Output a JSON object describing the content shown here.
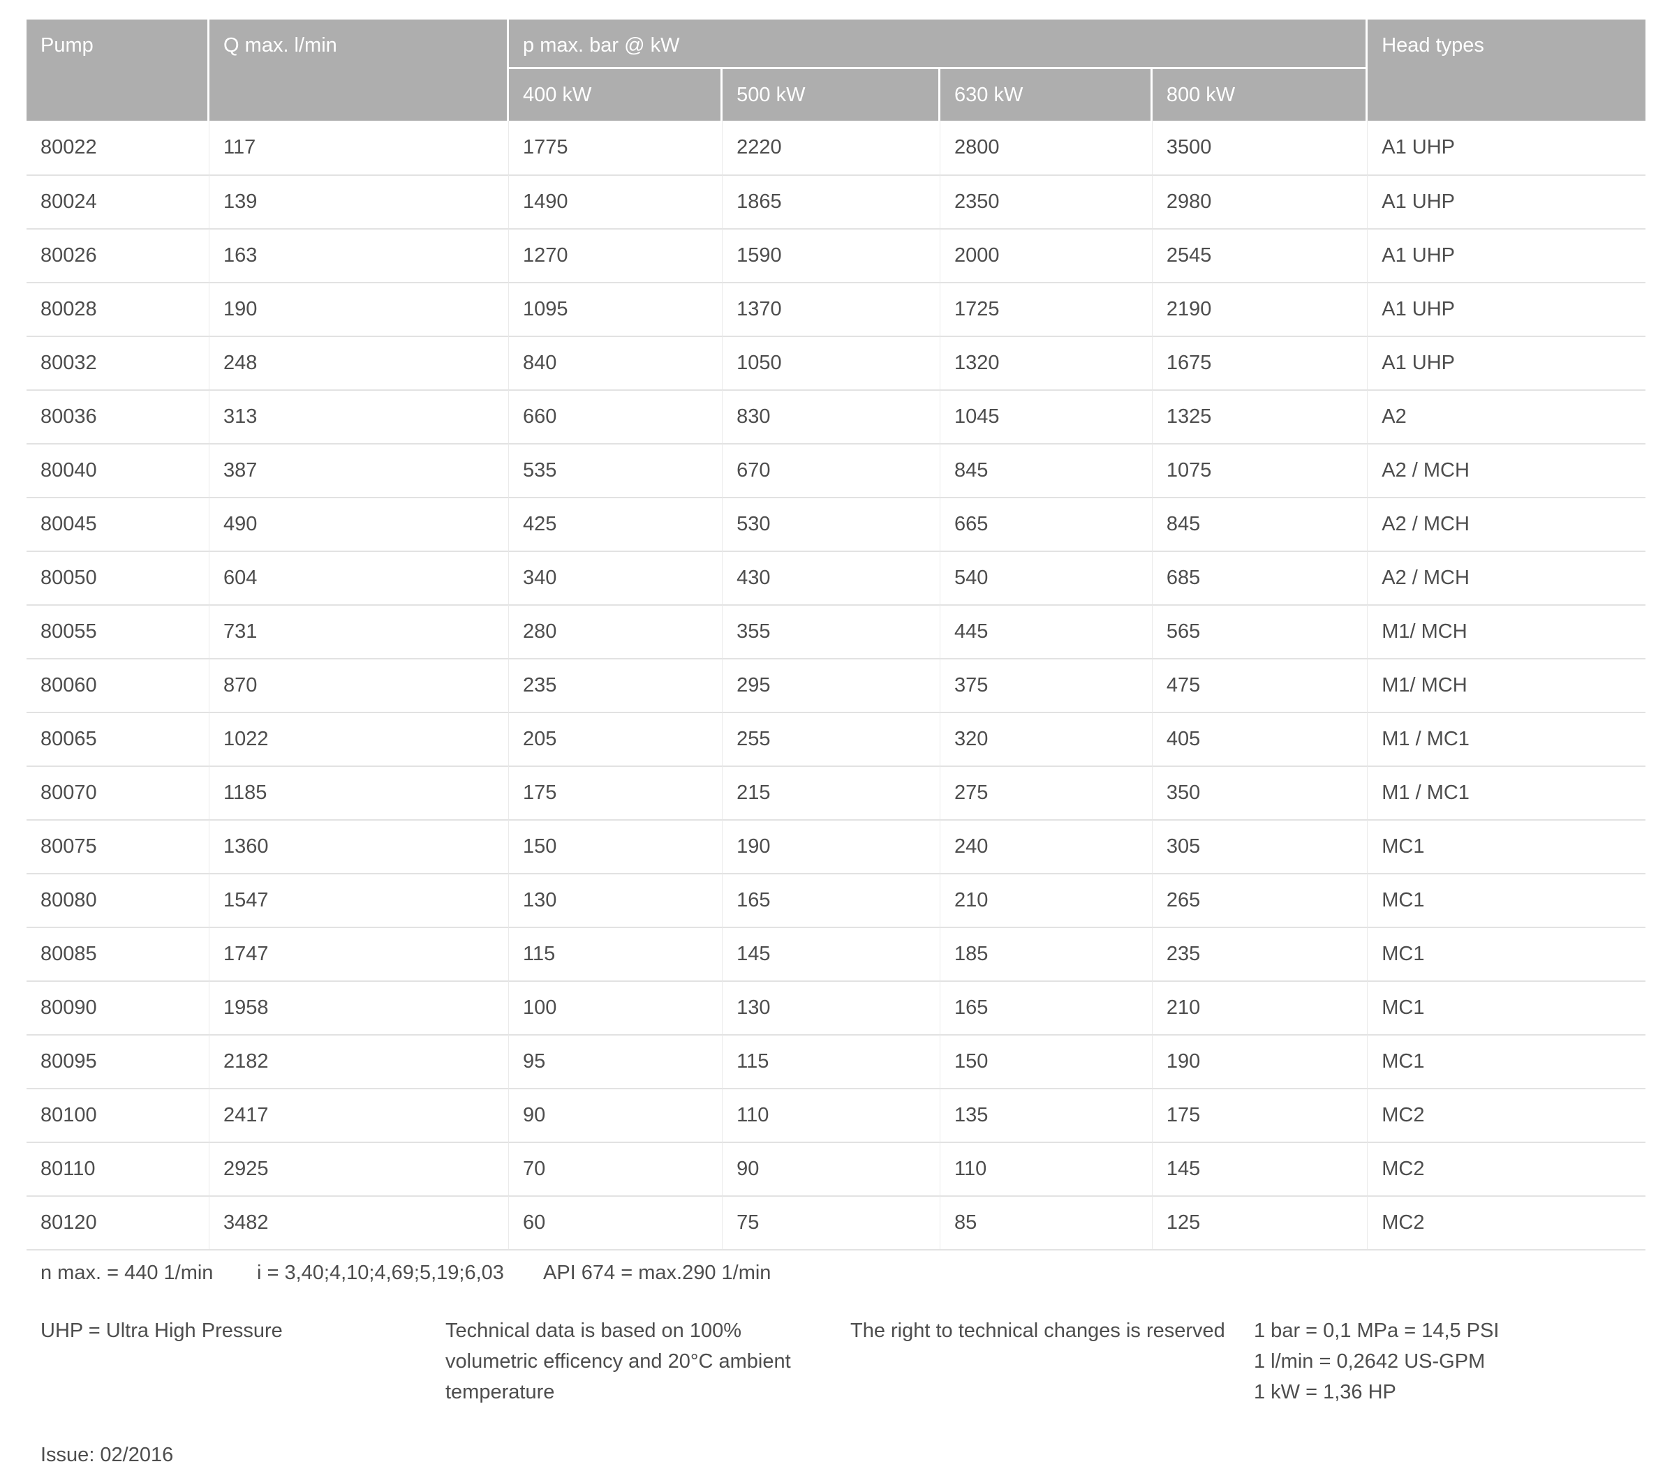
{
  "colors": {
    "header_bg": "#aeaeae",
    "header_text": "#ffffff",
    "body_text": "#4d4d4d",
    "row_divider": "#e2e2e2"
  },
  "table": {
    "header": {
      "pump": "Pump",
      "q_max": "Q max. l/min",
      "p_max_group": "p max. bar @ kW",
      "kw_columns": [
        "400 kW",
        "500 kW",
        "630 kW",
        "800 kW"
      ],
      "head_types": "Head types"
    },
    "rows": [
      {
        "pump": "80022",
        "q_max": "117",
        "p_max_bar": [
          "1775",
          "2220",
          "2800",
          "3500"
        ],
        "head_types": "A1 UHP"
      },
      {
        "pump": "80024",
        "q_max": "139",
        "p_max_bar": [
          "1490",
          "1865",
          "2350",
          "2980"
        ],
        "head_types": "A1 UHP"
      },
      {
        "pump": "80026",
        "q_max": "163",
        "p_max_bar": [
          "1270",
          "1590",
          "2000",
          "2545"
        ],
        "head_types": "A1 UHP"
      },
      {
        "pump": "80028",
        "q_max": "190",
        "p_max_bar": [
          "1095",
          "1370",
          "1725",
          "2190"
        ],
        "head_types": "A1 UHP"
      },
      {
        "pump": "80032",
        "q_max": "248",
        "p_max_bar": [
          "840",
          "1050",
          "1320",
          "1675"
        ],
        "head_types": "A1 UHP"
      },
      {
        "pump": "80036",
        "q_max": "313",
        "p_max_bar": [
          "660",
          "830",
          "1045",
          "1325"
        ],
        "head_types": "A2"
      },
      {
        "pump": "80040",
        "q_max": "387",
        "p_max_bar": [
          "535",
          "670",
          "845",
          "1075"
        ],
        "head_types": "A2 / MCH"
      },
      {
        "pump": "80045",
        "q_max": "490",
        "p_max_bar": [
          "425",
          "530",
          "665",
          "845"
        ],
        "head_types": "A2 / MCH"
      },
      {
        "pump": "80050",
        "q_max": "604",
        "p_max_bar": [
          "340",
          "430",
          "540",
          "685"
        ],
        "head_types": "A2 / MCH"
      },
      {
        "pump": "80055",
        "q_max": "731",
        "p_max_bar": [
          "280",
          "355",
          "445",
          "565"
        ],
        "head_types": "M1/ MCH"
      },
      {
        "pump": "80060",
        "q_max": "870",
        "p_max_bar": [
          "235",
          "295",
          "375",
          "475"
        ],
        "head_types": "M1/ MCH"
      },
      {
        "pump": "80065",
        "q_max": "1022",
        "p_max_bar": [
          "205",
          "255",
          "320",
          "405"
        ],
        "head_types": "M1 / MC1"
      },
      {
        "pump": "80070",
        "q_max": "1185",
        "p_max_bar": [
          "175",
          "215",
          "275",
          "350"
        ],
        "head_types": "M1 / MC1"
      },
      {
        "pump": "80075",
        "q_max": "1360",
        "p_max_bar": [
          "150",
          "190",
          "240",
          "305"
        ],
        "head_types": "MC1"
      },
      {
        "pump": "80080",
        "q_max": "1547",
        "p_max_bar": [
          "130",
          "165",
          "210",
          "265"
        ],
        "head_types": "MC1"
      },
      {
        "pump": "80085",
        "q_max": "1747",
        "p_max_bar": [
          "115",
          "145",
          "185",
          "235"
        ],
        "head_types": "MC1"
      },
      {
        "pump": "80090",
        "q_max": "1958",
        "p_max_bar": [
          "100",
          "130",
          "165",
          "210"
        ],
        "head_types": "MC1"
      },
      {
        "pump": "80095",
        "q_max": "2182",
        "p_max_bar": [
          "95",
          "115",
          "150",
          "190"
        ],
        "head_types": "MC1"
      },
      {
        "pump": "80100",
        "q_max": "2417",
        "p_max_bar": [
          "90",
          "110",
          "135",
          "175"
        ],
        "head_types": "MC2"
      },
      {
        "pump": "80110",
        "q_max": "2925",
        "p_max_bar": [
          "70",
          "90",
          "110",
          "145"
        ],
        "head_types": "MC2"
      },
      {
        "pump": "80120",
        "q_max": "3482",
        "p_max_bar": [
          "60",
          "75",
          "85",
          "125"
        ],
        "head_types": "MC2"
      }
    ]
  },
  "notes": {
    "n_max": "n max. = 440 1/min",
    "gear_ratios": "i = 3,40;4,10;4,69;5,19;6,03",
    "api": "API 674 = max.290 1/min",
    "uhp": "UHP = Ultra High Pressure",
    "technical_basis": "Technical data is based on 100% volumetric efficency and 20°C ambient temperature",
    "rights": "The right to technical changes is reserved",
    "conversions": [
      "1 bar = 0,1 MPa = 14,5 PSI",
      "1 l/min = 0,2642 US-GPM",
      "1 kW = 1,36 HP"
    ]
  },
  "footer": {
    "issue": "Issue: 02/2016"
  }
}
